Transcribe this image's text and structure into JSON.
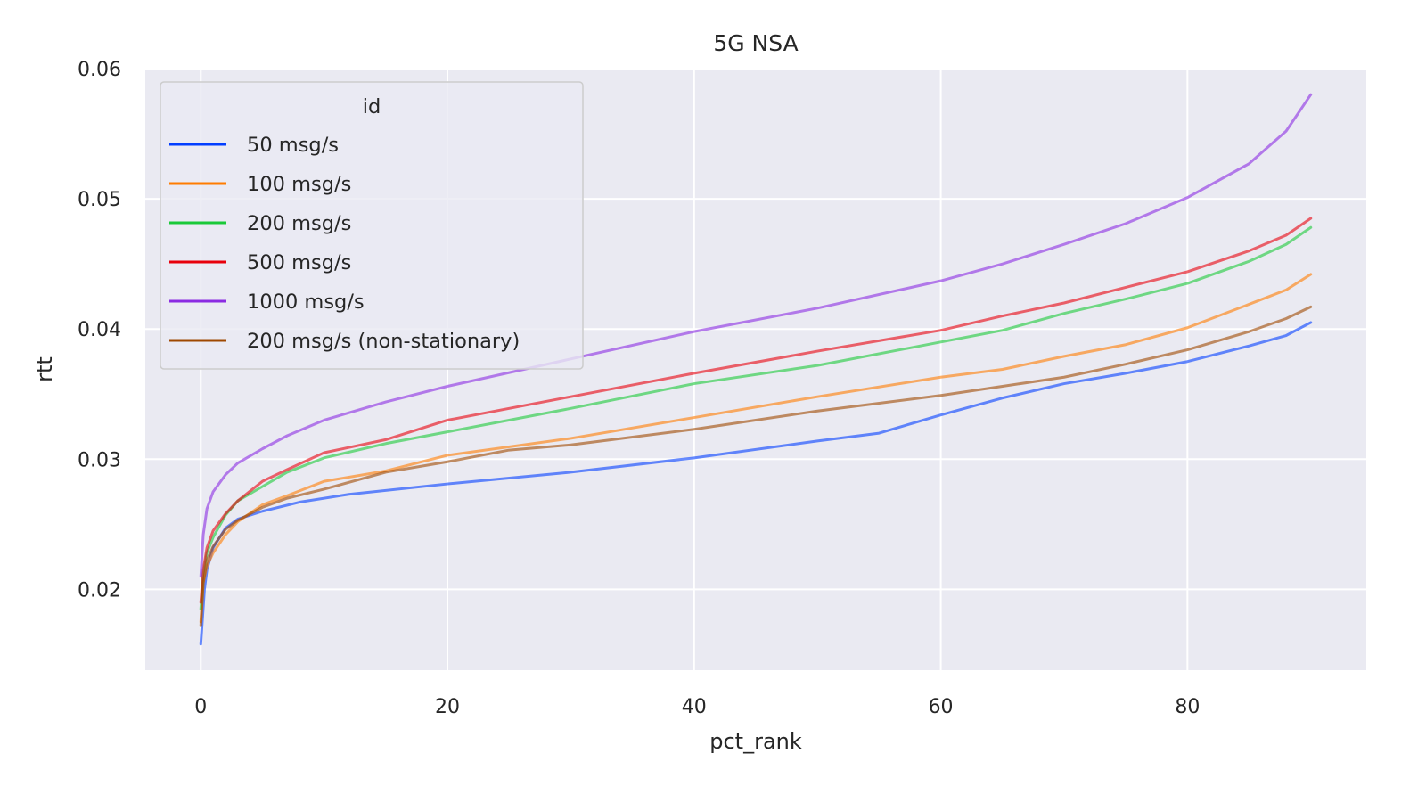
{
  "chart_data": {
    "type": "line",
    "title": "5G NSA",
    "xlabel": "pct_rank",
    "ylabel": "rtt",
    "xlim": [
      -4.5,
      94.5
    ],
    "ylim": [
      0.0138,
      0.06
    ],
    "xticks": [
      0,
      20,
      40,
      60,
      80
    ],
    "xtick_labels": [
      "0",
      "20",
      "40",
      "60",
      "80"
    ],
    "yticks": [
      0.02,
      0.03,
      0.04,
      0.05,
      0.06
    ],
    "ytick_labels": [
      "0.02",
      "0.03",
      "0.04",
      "0.05",
      "0.06"
    ],
    "grid": true,
    "legend": {
      "title": "id",
      "placement": "top-left"
    },
    "series": [
      {
        "name": "50 msg/s",
        "color": "#023eff",
        "points": [
          [
            0,
            0.0158
          ],
          [
            0.1,
            0.0172
          ],
          [
            0.3,
            0.02
          ],
          [
            0.5,
            0.0215
          ],
          [
            1,
            0.0232
          ],
          [
            2,
            0.0247
          ],
          [
            3,
            0.0254
          ],
          [
            5,
            0.026
          ],
          [
            8,
            0.0267
          ],
          [
            12,
            0.0273
          ],
          [
            20,
            0.0281
          ],
          [
            30,
            0.029
          ],
          [
            40,
            0.0301
          ],
          [
            50,
            0.0314
          ],
          [
            55,
            0.032
          ],
          [
            60,
            0.0334
          ],
          [
            65,
            0.0347
          ],
          [
            70,
            0.0358
          ],
          [
            75,
            0.0366
          ],
          [
            80,
            0.0375
          ],
          [
            85,
            0.0387
          ],
          [
            88,
            0.0395
          ],
          [
            90,
            0.0405
          ]
        ]
      },
      {
        "name": "100 msg/s",
        "color": "#ff7c00",
        "points": [
          [
            0,
            0.0175
          ],
          [
            0.2,
            0.0205
          ],
          [
            0.5,
            0.0218
          ],
          [
            1,
            0.0228
          ],
          [
            2,
            0.0242
          ],
          [
            3,
            0.0252
          ],
          [
            5,
            0.0265
          ],
          [
            7,
            0.0272
          ],
          [
            10,
            0.0283
          ],
          [
            15,
            0.0291
          ],
          [
            20,
            0.0303
          ],
          [
            30,
            0.0316
          ],
          [
            40,
            0.0332
          ],
          [
            50,
            0.0348
          ],
          [
            60,
            0.0363
          ],
          [
            65,
            0.0369
          ],
          [
            70,
            0.0379
          ],
          [
            75,
            0.0388
          ],
          [
            80,
            0.0401
          ],
          [
            85,
            0.0419
          ],
          [
            88,
            0.043
          ],
          [
            90,
            0.0442
          ]
        ]
      },
      {
        "name": "200 msg/s",
        "color": "#1ac938",
        "points": [
          [
            0,
            0.0185
          ],
          [
            0.2,
            0.0212
          ],
          [
            0.5,
            0.0228
          ],
          [
            1,
            0.024
          ],
          [
            2,
            0.0257
          ],
          [
            3,
            0.0268
          ],
          [
            5,
            0.0279
          ],
          [
            7,
            0.029
          ],
          [
            10,
            0.0301
          ],
          [
            15,
            0.0312
          ],
          [
            20,
            0.0321
          ],
          [
            30,
            0.0339
          ],
          [
            40,
            0.0358
          ],
          [
            50,
            0.0372
          ],
          [
            60,
            0.039
          ],
          [
            65,
            0.0399
          ],
          [
            70,
            0.0412
          ],
          [
            75,
            0.0423
          ],
          [
            80,
            0.0435
          ],
          [
            85,
            0.0452
          ],
          [
            88,
            0.0465
          ],
          [
            90,
            0.0478
          ]
        ]
      },
      {
        "name": "500 msg/s",
        "color": "#e8000b",
        "points": [
          [
            0,
            0.019
          ],
          [
            0.2,
            0.0215
          ],
          [
            0.5,
            0.0232
          ],
          [
            1,
            0.0245
          ],
          [
            2,
            0.0258
          ],
          [
            3,
            0.0268
          ],
          [
            5,
            0.0283
          ],
          [
            7,
            0.0292
          ],
          [
            10,
            0.0305
          ],
          [
            15,
            0.0315
          ],
          [
            20,
            0.033
          ],
          [
            30,
            0.0348
          ],
          [
            40,
            0.0366
          ],
          [
            50,
            0.0383
          ],
          [
            60,
            0.0399
          ],
          [
            65,
            0.041
          ],
          [
            70,
            0.042
          ],
          [
            75,
            0.0432
          ],
          [
            80,
            0.0444
          ],
          [
            85,
            0.046
          ],
          [
            88,
            0.0472
          ],
          [
            90,
            0.0485
          ]
        ]
      },
      {
        "name": "1000 msg/s",
        "color": "#8b2be2",
        "points": [
          [
            0,
            0.021
          ],
          [
            0.2,
            0.0242
          ],
          [
            0.5,
            0.0262
          ],
          [
            1,
            0.0275
          ],
          [
            2,
            0.0288
          ],
          [
            3,
            0.0297
          ],
          [
            5,
            0.0308
          ],
          [
            7,
            0.0318
          ],
          [
            10,
            0.033
          ],
          [
            15,
            0.0344
          ],
          [
            20,
            0.0356
          ],
          [
            30,
            0.0377
          ],
          [
            40,
            0.0398
          ],
          [
            50,
            0.0416
          ],
          [
            60,
            0.0437
          ],
          [
            65,
            0.045
          ],
          [
            70,
            0.0465
          ],
          [
            75,
            0.0481
          ],
          [
            80,
            0.0501
          ],
          [
            85,
            0.0527
          ],
          [
            88,
            0.0552
          ],
          [
            90,
            0.058
          ]
        ]
      },
      {
        "name": "200 msg/s (non-stationary)",
        "color": "#9f4800",
        "points": [
          [
            0,
            0.0172
          ],
          [
            0.2,
            0.0205
          ],
          [
            0.5,
            0.0222
          ],
          [
            1,
            0.0233
          ],
          [
            2,
            0.0246
          ],
          [
            3,
            0.0253
          ],
          [
            5,
            0.0263
          ],
          [
            7,
            0.027
          ],
          [
            10,
            0.0277
          ],
          [
            15,
            0.029
          ],
          [
            20,
            0.0298
          ],
          [
            25,
            0.0307
          ],
          [
            30,
            0.0311
          ],
          [
            40,
            0.0323
          ],
          [
            50,
            0.0337
          ],
          [
            60,
            0.0349
          ],
          [
            65,
            0.0356
          ],
          [
            70,
            0.0363
          ],
          [
            75,
            0.0373
          ],
          [
            80,
            0.0384
          ],
          [
            85,
            0.0398
          ],
          [
            88,
            0.0408
          ],
          [
            90,
            0.0417
          ]
        ]
      }
    ]
  }
}
